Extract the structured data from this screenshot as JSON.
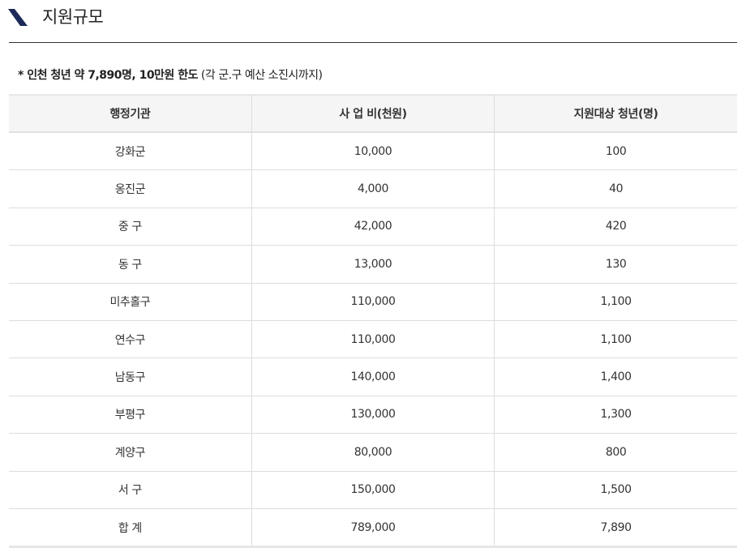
{
  "section": {
    "title": "지원규모",
    "icon": "slash-bullet-icon",
    "accent": "#1e2a5a"
  },
  "note": {
    "bold": "* 인천 청년 약 7,890명, 10만원 한도",
    "normal": " (각 군.구 예산 소진시까지)"
  },
  "table": {
    "headers": [
      "행정기관",
      "사 업 비(천원)",
      "지원대상 청년(명)"
    ],
    "rows": [
      [
        "강화군",
        "10,000",
        "100"
      ],
      [
        "옹진군",
        "4,000",
        "40"
      ],
      [
        "중 구",
        "42,000",
        "420"
      ],
      [
        "동 구",
        "13,000",
        "130"
      ],
      [
        "미추홀구",
        "110,000",
        "1,100"
      ],
      [
        "연수구",
        "110,000",
        "1,100"
      ],
      [
        "남동구",
        "140,000",
        "1,400"
      ],
      [
        "부평구",
        "130,000",
        "1,300"
      ],
      [
        "계양구",
        "80,000",
        "800"
      ],
      [
        "서 구",
        "150,000",
        "1,500"
      ],
      [
        "합 계",
        "789,000",
        "7,890"
      ]
    ]
  }
}
